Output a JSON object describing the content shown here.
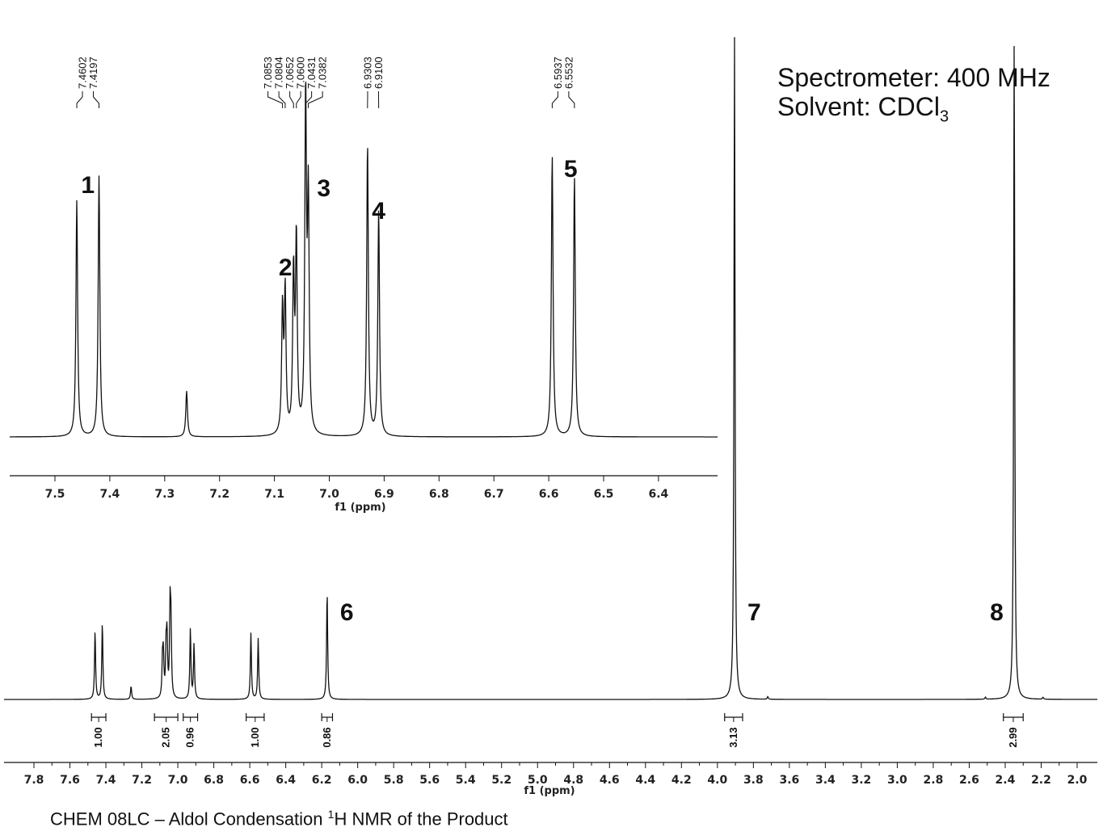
{
  "info": {
    "spectrometer": "Spectrometer: 400 MHz",
    "solvent_prefix": "Solvent: CDCl",
    "solvent_sub": "3"
  },
  "caption": {
    "prefix": "CHEM 08LC – Aldol Condensation ",
    "sup": "1",
    "suffix": "H NMR of the Product"
  },
  "chart_data": [
    {
      "type": "line",
      "title": "",
      "xlabel": "f1 (ppm)",
      "ylabel": "",
      "x_reversed": true,
      "xlim": [
        7.8,
        2.0
      ],
      "x_ticks": [
        "7.8",
        "7.6",
        "7.4",
        "7.2",
        "7.0",
        "6.8",
        "6.6",
        "6.4",
        "6.2",
        "6.0",
        "5.8",
        "5.6",
        "5.4",
        "5.2",
        "5.0",
        "4.8",
        "4.6",
        "4.4",
        "4.2",
        "4.0",
        "3.8",
        "3.6",
        "3.4",
        "3.2",
        "3.0",
        "2.8",
        "2.6",
        "2.4",
        "2.2",
        "2.0"
      ],
      "peaks": [
        {
          "ppm": 7.4602,
          "height": 0.103
        },
        {
          "ppm": 7.4197,
          "height": 0.115
        },
        {
          "ppm": 7.26,
          "height": 0.02
        },
        {
          "ppm": 7.0853,
          "height": 0.055
        },
        {
          "ppm": 7.0804,
          "height": 0.06
        },
        {
          "ppm": 7.0652,
          "height": 0.07
        },
        {
          "ppm": 7.06,
          "height": 0.085
        },
        {
          "ppm": 7.0431,
          "height": 0.13
        },
        {
          "ppm": 7.0382,
          "height": 0.1
        },
        {
          "ppm": 6.9303,
          "height": 0.106
        },
        {
          "ppm": 6.91,
          "height": 0.083
        },
        {
          "ppm": 6.5937,
          "height": 0.1
        },
        {
          "ppm": 6.5532,
          "height": 0.092
        },
        {
          "ppm": 6.17,
          "height": 0.163
        },
        {
          "ppm": 3.905,
          "height": 1.0
        },
        {
          "ppm": 3.72,
          "height": 0.004
        },
        {
          "ppm": 2.35,
          "height": 1.0
        },
        {
          "ppm": 2.51,
          "height": 0.003
        },
        {
          "ppm": 2.19,
          "height": 0.003
        }
      ],
      "peak_labels": [
        {
          "label": "6",
          "ppm": 6.17
        },
        {
          "label": "7",
          "ppm": 3.905
        },
        {
          "label": "8",
          "ppm": 2.35
        }
      ],
      "integrals": [
        {
          "label": "1.00",
          "from": 7.48,
          "to": 7.4
        },
        {
          "label": "2.05",
          "from": 7.13,
          "to": 7.0
        },
        {
          "label": "0.96",
          "from": 6.97,
          "to": 6.89
        },
        {
          "label": "1.00",
          "from": 6.62,
          "to": 6.52
        },
        {
          "label": "0.86",
          "from": 6.2,
          "to": 6.14
        },
        {
          "label": "3.13",
          "from": 3.96,
          "to": 3.86
        },
        {
          "label": "2.99",
          "from": 2.41,
          "to": 2.3
        }
      ]
    },
    {
      "type": "line",
      "title": "",
      "xlabel": "f1 (ppm)",
      "ylabel": "",
      "x_reversed": true,
      "xlim": [
        7.57,
        6.3
      ],
      "x_ticks": [
        "7.5",
        "7.4",
        "7.3",
        "7.2",
        "7.1",
        "7.0",
        "6.9",
        "6.8",
        "6.7",
        "6.6",
        "6.5",
        "6.4"
      ],
      "peaks": [
        {
          "ppm": 7.4602,
          "height": 0.67
        },
        {
          "ppm": 7.4197,
          "height": 0.74
        },
        {
          "ppm": 7.26,
          "height": 0.13
        },
        {
          "ppm": 7.0853,
          "height": 0.35
        },
        {
          "ppm": 7.0804,
          "height": 0.4
        },
        {
          "ppm": 7.0652,
          "height": 0.45
        },
        {
          "ppm": 7.06,
          "height": 0.55
        },
        {
          "ppm": 7.0431,
          "height": 0.95
        },
        {
          "ppm": 7.0382,
          "height": 0.65
        },
        {
          "ppm": 6.9303,
          "height": 0.83
        },
        {
          "ppm": 6.91,
          "height": 0.64
        },
        {
          "ppm": 6.5937,
          "height": 0.8
        },
        {
          "ppm": 6.5532,
          "height": 0.74
        }
      ],
      "shift_labels": [
        "7.4602",
        "7.4197",
        "7.0853",
        "7.0804",
        "7.0652",
        "7.0600",
        "7.0431",
        "7.0382",
        "6.9303",
        "6.9100",
        "6.5937",
        "6.5532"
      ],
      "peak_labels": [
        {
          "label": "1",
          "ppm": 7.44
        },
        {
          "label": "2",
          "ppm": 7.08
        },
        {
          "label": "3",
          "ppm": 7.01
        },
        {
          "label": "4",
          "ppm": 6.91
        },
        {
          "label": "5",
          "ppm": 6.56
        }
      ]
    }
  ]
}
